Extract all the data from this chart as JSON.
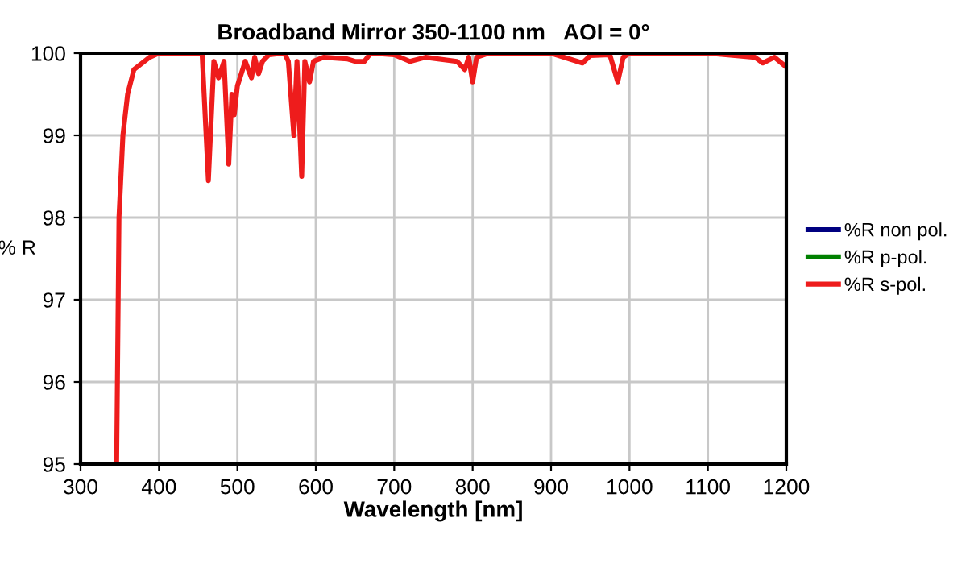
{
  "chart_data": {
    "type": "line",
    "title": "Broadband Mirror 350-1100 nm   AOI = 0°",
    "xlabel": "Wavelength [nm]",
    "ylabel": "% R",
    "x": [
      346,
      349,
      354,
      360,
      368,
      388,
      400,
      455,
      463,
      470,
      476,
      483,
      489,
      493,
      496,
      500,
      505,
      510,
      518,
      522,
      527,
      532,
      540,
      560,
      565,
      572,
      576,
      582,
      586,
      592,
      597,
      610,
      640,
      650,
      662,
      670,
      700,
      720,
      740,
      780,
      790,
      795,
      800,
      805,
      820,
      900,
      940,
      950,
      975,
      985,
      992,
      1000,
      1100,
      1160,
      1170,
      1185,
      1200
    ],
    "series": [
      {
        "name": "%R non pol.",
        "color": "#000080",
        "values": [
          null,
          null,
          null,
          null,
          null,
          null,
          null,
          null,
          null,
          null,
          null,
          null,
          null,
          null,
          null,
          null,
          null,
          null,
          null,
          null,
          null,
          null,
          null,
          null,
          null,
          null,
          null,
          null,
          null,
          null,
          null,
          null,
          null,
          null,
          null,
          null,
          null,
          null,
          null,
          null,
          null,
          null,
          null,
          null,
          null,
          null,
          null,
          null,
          null,
          null,
          null,
          null,
          null,
          null,
          null,
          null,
          null
        ]
      },
      {
        "name": "%R p-pol.",
        "color": "#008000",
        "values": [
          null,
          null,
          null,
          null,
          null,
          null,
          null,
          null,
          null,
          null,
          null,
          null,
          null,
          null,
          null,
          null,
          null,
          null,
          null,
          null,
          null,
          null,
          null,
          null,
          null,
          null,
          null,
          null,
          null,
          null,
          null,
          null,
          null,
          null,
          null,
          null,
          null,
          null,
          null,
          null,
          null,
          null,
          null,
          null,
          null,
          null,
          null,
          null,
          null,
          null,
          null,
          null,
          null,
          null,
          null,
          null,
          null
        ]
      },
      {
        "name": "%R s-pol.",
        "color": "#ee1c1c",
        "values": [
          95,
          98,
          99,
          99.5,
          99.8,
          99.95,
          100,
          100,
          98.45,
          99.9,
          99.7,
          99.9,
          98.65,
          99.5,
          99.25,
          99.6,
          99.75,
          99.9,
          99.7,
          99.95,
          99.75,
          99.9,
          99.98,
          100,
          99.9,
          99.0,
          99.9,
          98.5,
          99.9,
          99.65,
          99.9,
          99.95,
          99.93,
          99.9,
          99.9,
          100,
          99.98,
          99.9,
          99.95,
          99.9,
          99.8,
          99.95,
          99.65,
          99.95,
          100,
          100,
          99.88,
          99.97,
          99.98,
          99.65,
          99.95,
          100,
          100,
          99.95,
          99.88,
          99.95,
          99.83
        ]
      }
    ],
    "xlim": [
      300,
      1200
    ],
    "xticks": [
      300,
      400,
      500,
      600,
      700,
      800,
      900,
      1000,
      1100,
      1200
    ],
    "ylim": [
      95,
      100
    ],
    "yticks": [
      95,
      96,
      97,
      98,
      99,
      100
    ],
    "grid": true,
    "legend": "right",
    "marker": "none",
    "line_style": "solid"
  }
}
